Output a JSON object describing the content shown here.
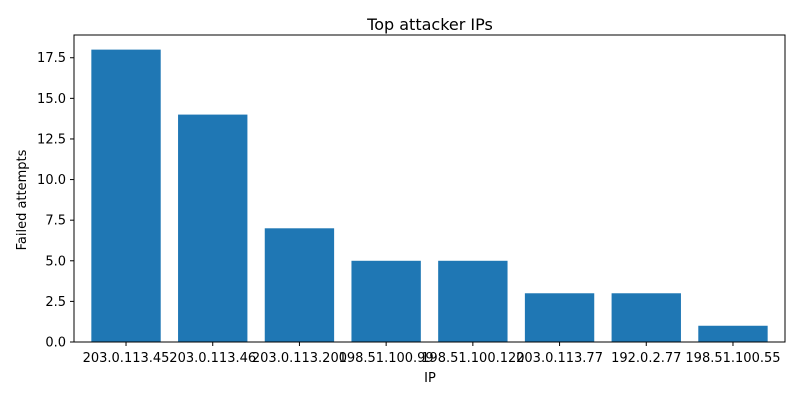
{
  "chart_data": {
    "type": "bar",
    "title": "Top attacker IPs",
    "xlabel": "IP",
    "ylabel": "Failed attempts",
    "categories": [
      "203.0.113.45",
      "203.0.113.46",
      "203.0.113.200",
      "198.51.100.99",
      "198.51.100.120",
      "203.0.113.77",
      "192.0.2.77",
      "198.51.100.55"
    ],
    "values": [
      18,
      14,
      7,
      5,
      5,
      3,
      3,
      1
    ],
    "ylim": [
      0,
      18.9
    ],
    "yticks": [
      0.0,
      2.5,
      5.0,
      7.5,
      10.0,
      12.5,
      15.0,
      17.5
    ],
    "ytick_labels": [
      "0.0",
      "2.5",
      "5.0",
      "7.5",
      "10.0",
      "12.5",
      "15.0",
      "17.5"
    ],
    "grid": false,
    "bar_color": "#1f77b4"
  }
}
